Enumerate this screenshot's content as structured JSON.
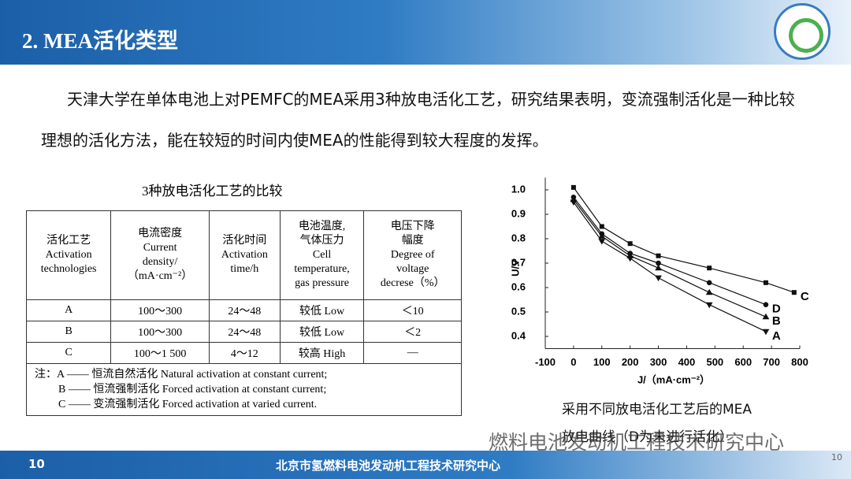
{
  "header": {
    "title": "2. MEA活化类型"
  },
  "body": {
    "paragraph": "天津大学在单体电池上对PEMFC的MEA采用3种放电活化工艺，研究结果表明，变流强制活化是一种比较理想的活化方法，能在较短的时间内使MEA的性能得到较大程度的发挥。"
  },
  "table": {
    "title": "3种放电活化工艺的比较",
    "header": [
      [
        "活化工艺",
        "Activation",
        "technologies"
      ],
      [
        "电流密度",
        "Current",
        "density/",
        "（mA·cm⁻²）"
      ],
      [
        "活化时间",
        "Activation",
        "time/h"
      ],
      [
        "电池温度,",
        "气体压力",
        "Cell",
        "temperature,",
        "gas pressure"
      ],
      [
        "电压下降",
        "幅度",
        "Degree of",
        "voltage",
        "decrese（%）"
      ]
    ],
    "rows": [
      [
        "A",
        "100～300",
        "24～48",
        "较低 Low",
        "＜10"
      ],
      [
        "B",
        "100～300",
        "24～48",
        "较低 Low",
        "＜2"
      ],
      [
        "C",
        "100～1 500",
        "4～12",
        "较高 High",
        "—"
      ]
    ],
    "notes": [
      "注：A —— 恒流自然活化 Natural activation at constant current;",
      "B —— 恒流强制活化 Forced activation at constant current;",
      "C —— 变流强制活化 Forced activation at varied current."
    ]
  },
  "chart_data": {
    "type": "line",
    "y_label": "U/V",
    "x_label": "J/（mA·cm⁻²）",
    "xlim": [
      -100,
      800
    ],
    "xticks": [
      -100,
      0,
      100,
      200,
      300,
      400,
      500,
      600,
      700,
      800
    ],
    "ylim": [
      0.35,
      1.05
    ],
    "yticks": [
      0.4,
      0.5,
      0.6,
      0.7,
      0.8,
      0.9,
      {
        "value": 1,
        "label": "1.0"
      }
    ],
    "series": [
      {
        "name": "C",
        "color": "#111111",
        "marker": "square",
        "x": [
          0,
          100,
          200,
          300,
          480,
          680,
          780
        ],
        "values": [
          1.01,
          0.85,
          0.78,
          0.73,
          0.68,
          0.62,
          0.58
        ]
      },
      {
        "name": "D",
        "color": "#111111",
        "marker": "circle",
        "x": [
          0,
          100,
          200,
          300,
          480,
          680
        ],
        "values": [
          0.97,
          0.82,
          0.74,
          0.7,
          0.62,
          0.53
        ]
      },
      {
        "name": "B",
        "color": "#111111",
        "marker": "triangle-up",
        "x": [
          0,
          100,
          200,
          300,
          480,
          680
        ],
        "values": [
          0.96,
          0.81,
          0.73,
          0.68,
          0.58,
          0.48
        ]
      },
      {
        "name": "A",
        "color": "#111111",
        "marker": "triangle-down",
        "x": [
          0,
          100,
          200,
          300,
          480,
          680
        ],
        "values": [
          0.95,
          0.79,
          0.72,
          0.64,
          0.53,
          0.42
        ]
      }
    ]
  },
  "caption": [
    "采用不同放电活化工艺后的MEA",
    "放电曲线（D为未进行活化）"
  ],
  "watermark": "燃料电池发动机工程技术研究中心",
  "footer": {
    "left": "10",
    "center": "北京市氢燃料电池发动机工程技术研究中心",
    "right": "10"
  }
}
